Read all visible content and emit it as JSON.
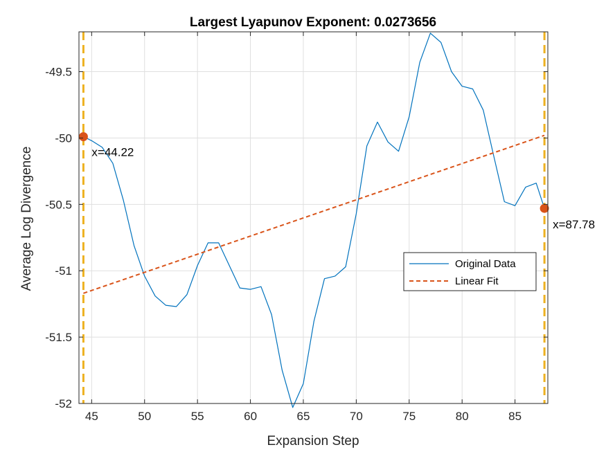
{
  "chart_data": {
    "type": "line",
    "title": "Largest Lyapunov Exponent: 0.0273656",
    "xlabel": "Expansion Step",
    "ylabel": "Average Log Divergence",
    "xlim": [
      43.8,
      88.1
    ],
    "ylim": [
      -52.0,
      -49.2
    ],
    "xticks": [
      45,
      50,
      55,
      60,
      65,
      70,
      75,
      80,
      85
    ],
    "yticks": [
      -52,
      -51.5,
      -51,
      -50.5,
      -50,
      -49.5
    ],
    "xtick_labels": [
      "45",
      "50",
      "55",
      "60",
      "65",
      "70",
      "75",
      "80",
      "85"
    ],
    "ytick_labels": [
      "-52",
      "-51.5",
      "-51",
      "-50.5",
      "-50",
      "-49.5"
    ],
    "grid": true,
    "legend_placement": "right",
    "series": [
      {
        "name": "Original Data",
        "style": "solid",
        "color": "#0072BD",
        "x": [
          44.22,
          45,
          46,
          47,
          48,
          49,
          50,
          51,
          52,
          53,
          54,
          55,
          56,
          57,
          58,
          59,
          60,
          61,
          62,
          63,
          64,
          65,
          66,
          67,
          68,
          69,
          70,
          71,
          72,
          73,
          74,
          75,
          76,
          77,
          78,
          79,
          80,
          81,
          82,
          83,
          84,
          85,
          86,
          87,
          87.78
        ],
        "y": [
          -49.99,
          -50.02,
          -50.07,
          -50.19,
          -50.47,
          -50.81,
          -51.04,
          -51.19,
          -51.26,
          -51.27,
          -51.18,
          -50.96,
          -50.79,
          -50.79,
          -50.96,
          -51.13,
          -51.14,
          -51.12,
          -51.33,
          -51.75,
          -52.03,
          -51.85,
          -51.38,
          -51.06,
          -51.04,
          -50.97,
          -50.57,
          -50.06,
          -49.88,
          -50.03,
          -50.1,
          -49.84,
          -49.43,
          -49.21,
          -49.28,
          -49.5,
          -49.61,
          -49.63,
          -49.79,
          -50.14,
          -50.48,
          -50.51,
          -50.37,
          -50.34,
          -50.53
        ]
      },
      {
        "name": "Linear Fit",
        "style": "dashed",
        "color": "#D95319",
        "x": [
          44.22,
          87.78
        ],
        "y": [
          -51.17,
          -49.98
        ]
      }
    ],
    "markers": [
      {
        "x": 44.22,
        "y": -49.99,
        "label": "x=44.22",
        "color": "#D95319"
      },
      {
        "x": 87.78,
        "y": -50.53,
        "label": "x=87.78",
        "color": "#D95319"
      }
    ],
    "vertical_lines": [
      {
        "x": 44.22,
        "color": "#EDB120",
        "style": "dashed"
      },
      {
        "x": 87.78,
        "color": "#EDB120",
        "style": "dashed"
      }
    ]
  }
}
